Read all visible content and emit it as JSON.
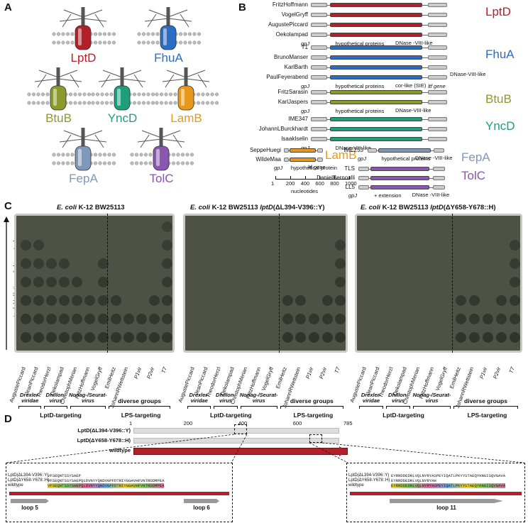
{
  "panels": {
    "a": "A",
    "b": "B",
    "c": "C",
    "d": "D"
  },
  "receptors": [
    {
      "name": "LptD",
      "color": "#b3202a"
    },
    {
      "name": "FhuA",
      "color": "#2b6cc4"
    },
    {
      "name": "BtuB",
      "color": "#8b9a2b"
    },
    {
      "name": "YncD",
      "color": "#1e9e7a"
    },
    {
      "name": "LamB",
      "color": "#e8981c"
    },
    {
      "name": "FepA",
      "color": "#7f97b8"
    },
    {
      "name": "TolC",
      "color": "#8a56b0"
    }
  ],
  "genome_groups": [
    {
      "receptor": "LptD",
      "phages": [
        "FritzHoffmann",
        "VogelGryff",
        "AugustePiccard",
        "Oekolampad"
      ],
      "notes": [
        "gpJ",
        "hypothetical proteins",
        "DNase -VIII-like"
      ]
    },
    {
      "receptor": "FhuA",
      "phages": [
        "T1",
        "BrunoManser",
        "KarlBarth",
        "PaulFeyerabend"
      ],
      "notes": [
        "gpJ",
        "hypothetical proteins",
        "cor-like (SIE)",
        "ltf gene",
        "DNase-VIII-like"
      ]
    },
    {
      "receptor": "BtuB",
      "phages": [
        "FritzSarasin",
        "KarlJaspers"
      ],
      "notes": [
        "gpJ",
        "hypothetical proteins",
        "DNase-VIII-like"
      ]
    },
    {
      "receptor": "YncD",
      "phages": [
        "IME347",
        "JohannLBurckhardt",
        "IsaakIselin"
      ],
      "notes": [
        "gpJ",
        "DNase-VIII-like"
      ]
    },
    {
      "receptor": "LamB",
      "phages": [
        "SeppeHuegi",
        "WildeMaa"
      ],
      "notes": [
        "gpJ",
        "hypothetical protein",
        "ltf gene"
      ]
    },
    {
      "receptor": "FepA",
      "phages": [
        "IME253"
      ],
      "notes": [
        "gpJ",
        "hypothetical proteins",
        "DNase -VIII-like"
      ]
    },
    {
      "receptor": "TolC",
      "phages": [
        "TLS",
        "DanielBernoulli",
        "LL5"
      ],
      "notes": [
        "gpJ",
        "+ extension",
        "DNase -VIII-like"
      ]
    }
  ],
  "scale": {
    "ticks": [
      "1",
      "200",
      "400",
      "600",
      "800",
      "1000"
    ],
    "unit": "nucleotides"
  },
  "plates": [
    {
      "title_italic": "E. coli",
      "title_rest": " K-12 BW25113"
    },
    {
      "title_italic": "E. coli",
      "title_rest": " K-12 BW25113 ",
      "title_gene": "lptD",
      "title_mut": "(ΔL394-V396::Y)"
    },
    {
      "title_italic": "E. coli",
      "title_rest": " K-12 BW25113 ",
      "title_gene": "lptD",
      "title_mut": "(ΔY658-Y678::H)"
    }
  ],
  "dilution_label": "tenfold dilutions of phage stocks",
  "phage_columns": [
    "AugustePiccard",
    "JeanPiccard",
    "TheodorHerzl",
    "Oekolampad",
    "ChristophMerian",
    "FritzHoffmann",
    "VogelGryff",
    "EmilHeitz",
    "JohannRWettstein",
    "P1vir",
    "P2vir",
    "T7"
  ],
  "families": [
    "Drexler- viridae",
    "Dhillon- virus",
    "Nonag-/Seurat- virus",
    "diverse groups"
  ],
  "targeting": [
    "LptD-targeting",
    "LPS-targeting"
  ],
  "protein": {
    "tracks": [
      "LptD(ΔL394-V396::Y)",
      "LptD(ΔY658-Y678::H)",
      "wildtype"
    ],
    "ticks": [
      "1",
      "200",
      "400",
      "600",
      "785"
    ],
    "loops": [
      "loop 5",
      "loop 6",
      "loop 11"
    ],
    "seq_left": [
      "VFSEQNTSSYSAEP",
      "VFSEQNTSSYSAEPQLDVNYYQNDVGPFDTRIYGGAVHFVNTRDDMPEA",
      "VFSEQNTSSYSAEPQLDVNYYQNDVGPFDTRIYGGAVHFVNTRDDMPEA"
    ],
    "seq_right": [
      "EYRRDDEDRLVQLNYRYASPEYIQATLPKYYSTAEQYKNGISQVGAVA",
      "EYRRDDEDRLVQLNYRYAH",
      "EYRRDDEDRLVQLNYRYASPEYIQATLPKYYSTAEQYKNGISQVGAVA"
    ],
    "seq_labels": [
      "LptD(ΔL394-V396::Y)",
      "LptD(ΔY658-Y678::H)",
      "wildtype"
    ]
  }
}
